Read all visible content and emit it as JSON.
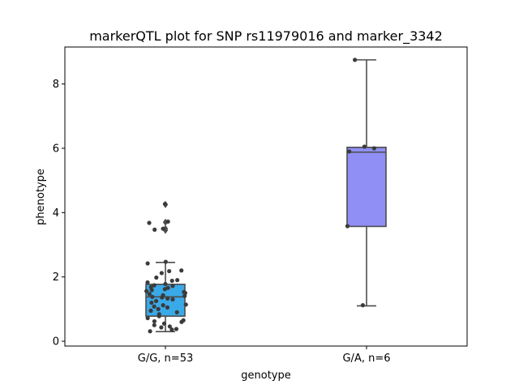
{
  "chart_data": {
    "type": "box",
    "title": "markerQTL plot for SNP rs11979016 and marker_3342",
    "xlabel": "genotype",
    "ylabel": "phenotype",
    "ylim": [
      -0.15,
      9.15
    ],
    "yticks": [
      0,
      2,
      4,
      6,
      8
    ],
    "grid": false,
    "categories": [
      "G/G, n=53",
      "G/A, n=6"
    ],
    "colors": [
      "#3aa9e8",
      "#8f8ff5"
    ],
    "boxes": [
      {
        "category": "G/G, n=53",
        "whisker_low": 0.3,
        "q1": 0.78,
        "median": 1.38,
        "q3": 1.77,
        "whisker_high": 2.45,
        "outliers": [
          3.45,
          3.5,
          3.7,
          4.25
        ]
      },
      {
        "category": "G/A, n=6",
        "whisker_low": 1.1,
        "q1": 3.57,
        "median": 5.88,
        "q3": 6.03,
        "whisker_high": 8.75,
        "outliers": []
      }
    ],
    "points": [
      {
        "category": "G/G, n=53",
        "values": [
          4.27,
          3.72,
          3.68,
          3.47,
          3.5,
          2.47,
          2.42,
          2.2,
          2.18,
          2.12,
          1.98,
          1.9,
          1.88,
          1.83,
          1.78,
          1.74,
          1.72,
          1.68,
          1.66,
          1.62,
          1.59,
          1.56,
          1.53,
          1.5,
          1.47,
          1.43,
          1.41,
          1.38,
          1.36,
          1.33,
          1.3,
          1.25,
          1.2,
          1.14,
          1.12,
          1.08,
          1.05,
          1.0,
          0.95,
          0.9,
          0.84,
          0.78,
          0.72,
          0.65,
          0.62,
          0.6,
          0.55,
          0.5,
          0.46,
          0.43,
          0.38,
          0.36,
          0.31
        ]
      },
      {
        "category": "G/A, n=6",
        "values": [
          8.75,
          6.05,
          5.9,
          3.58,
          1.12,
          6.0
        ]
      }
    ]
  }
}
